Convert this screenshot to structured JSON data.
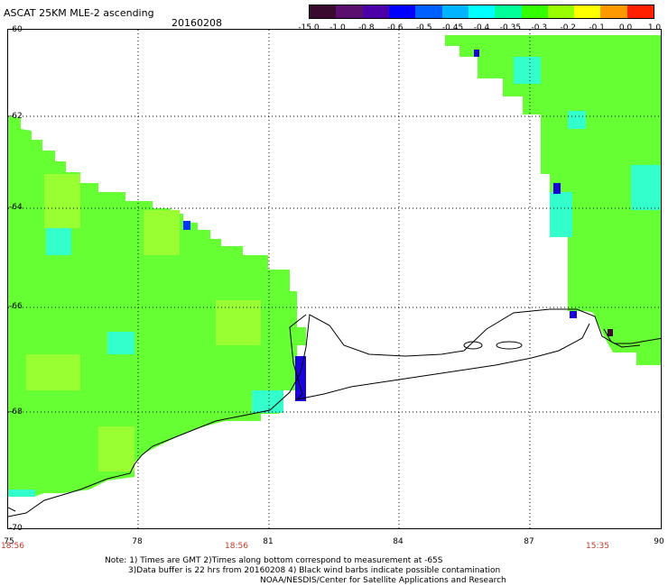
{
  "header": {
    "title": "ASCAT 25KM MLE-2 ascending",
    "date": "20160208"
  },
  "colorbar": {
    "labels": [
      "-15.0",
      "-1.0",
      "-0.8",
      "-0.6",
      "-0.5",
      "-0.45",
      "-0.4",
      "-0.35",
      "-0.3",
      "-0.2",
      "-0.1",
      "0.0",
      "1.0"
    ],
    "colors": [
      "#3a0a2e",
      "#5a0e6e",
      "#4b00a8",
      "#0000ff",
      "#0060ff",
      "#00b4ff",
      "#00ffff",
      "#00ff99",
      "#33ff00",
      "#99ff00",
      "#ffff00",
      "#ff9900",
      "#ff2000"
    ]
  },
  "map": {
    "lat_labels": [
      "-60",
      "-62",
      "-64",
      "-66",
      "-68",
      "-70"
    ],
    "lon_labels": [
      "75",
      "78",
      "81",
      "84",
      "87",
      "90"
    ],
    "times": [
      "18:56",
      "18:56",
      "15:35"
    ],
    "legend_colors": {
      "coast": "#000000",
      "grid": "#000000",
      "swath_green": "#66ff33",
      "swath_cyan": "#33ffcc",
      "swath_blue": "#0000cc"
    }
  },
  "notes": {
    "line1": "Note: 1) Times are GMT 2)Times along bottom correspond to measurement at -65S",
    "line2": "3)Data buffer is 22 hrs from 20160208 4) Black wind barbs indicate possible contamination",
    "line3": "NOAA/NESDIS/Center for Satellite Applications and Research"
  }
}
